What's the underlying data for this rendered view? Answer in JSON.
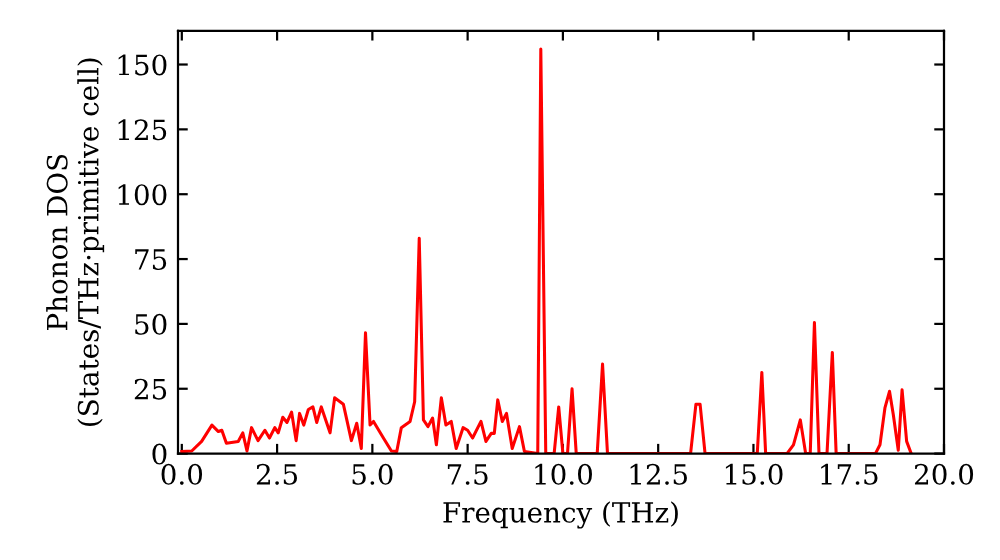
{
  "chart_data": {
    "type": "line",
    "xlabel": "Frequency (THz)",
    "ylabel": "Phonon DOS\n(States/THz·primitive cell)",
    "xlim": [
      -0.1,
      20.0
    ],
    "ylim": [
      0,
      163
    ],
    "xticks": [
      {
        "value": 0,
        "label": "0.0"
      },
      {
        "value": 2.5,
        "label": "2.5"
      },
      {
        "value": 5,
        "label": "5.0"
      },
      {
        "value": 7.5,
        "label": "7.5"
      },
      {
        "value": 10,
        "label": "10.0"
      },
      {
        "value": 12.5,
        "label": "12.5"
      },
      {
        "value": 15,
        "label": "15.0"
      },
      {
        "value": 17.5,
        "label": "17.5"
      },
      {
        "value": 20,
        "label": "20.0"
      }
    ],
    "yticks": [
      0,
      25,
      50,
      75,
      100,
      125,
      150
    ],
    "grid": false,
    "marker": "none",
    "line_style": "solid",
    "series": [
      {
        "color": "#ff0000",
        "x": [
          0.0,
          0.26,
          0.52,
          0.79,
          0.96,
          1.05,
          1.17,
          1.48,
          1.6,
          1.71,
          1.83,
          2.0,
          2.18,
          2.3,
          2.44,
          2.53,
          2.65,
          2.76,
          2.88,
          3.0,
          3.09,
          3.2,
          3.32,
          3.44,
          3.54,
          3.66,
          3.89,
          4.01,
          4.24,
          4.45,
          4.59,
          4.71,
          4.82,
          4.94,
          5.03,
          5.29,
          5.5,
          5.64,
          5.76,
          5.99,
          6.11,
          6.23,
          6.34,
          6.46,
          6.58,
          6.68,
          6.81,
          6.93,
          7.07,
          7.2,
          7.38,
          7.5,
          7.63,
          7.85,
          7.98,
          8.12,
          8.2,
          8.29,
          8.41,
          8.52,
          8.67,
          8.86,
          8.99,
          9.34,
          9.42,
          9.55,
          9.77,
          9.89,
          10.0,
          10.12,
          10.24,
          10.35,
          10.9,
          11.04,
          11.17,
          13.35,
          13.49,
          13.6,
          13.73,
          15.1,
          15.22,
          15.32,
          15.88,
          16.05,
          16.23,
          16.37,
          16.49,
          16.6,
          16.72,
          16.93,
          17.07,
          17.17,
          18.2,
          18.32,
          18.45,
          18.57,
          18.67,
          18.8,
          18.9,
          19.02,
          19.14
        ],
        "values": [
          0.8,
          1,
          4.7,
          11,
          8.5,
          9,
          4,
          4.7,
          8,
          1,
          10,
          5,
          9,
          6,
          10,
          8,
          14,
          12,
          16,
          5,
          15.5,
          11,
          17,
          18,
          12,
          18,
          8,
          21.5,
          19,
          5,
          11.7,
          2,
          46.6,
          11,
          12.4,
          6,
          1,
          0.8,
          10,
          12.4,
          20,
          83,
          13,
          10.4,
          13.7,
          3.4,
          21.5,
          11,
          12.4,
          2,
          10,
          9,
          6,
          12.4,
          4.7,
          7.8,
          7.8,
          20.7,
          12.4,
          15.5,
          2,
          10.4,
          0.8,
          0,
          156,
          0,
          0,
          18,
          0,
          0,
          25,
          0,
          0,
          34.5,
          0,
          0,
          19,
          19,
          0,
          0,
          31.3,
          0,
          0,
          3.4,
          13,
          0,
          0,
          50.5,
          0,
          0,
          39,
          0,
          0,
          3.4,
          17.6,
          24,
          15,
          1.3,
          24.6,
          4.7,
          0
        ]
      }
    ]
  }
}
